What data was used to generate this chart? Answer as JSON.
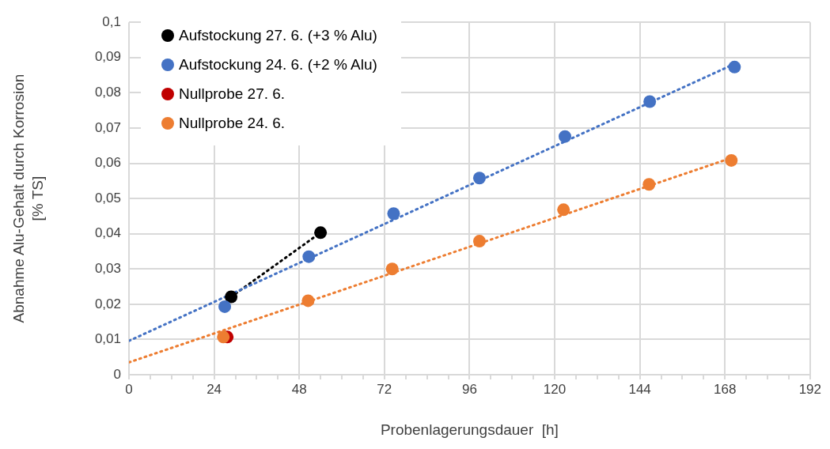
{
  "chart_data": {
    "type": "scatter",
    "xlabel": "Probenlagerungsdauer  [h]",
    "ylabel": "Abnahme Alu-Gehalt durch Korrosion\n[% TS]",
    "xlim": [
      0,
      192
    ],
    "xticks": [
      0,
      {
        "value": 6,
        "label": null
      },
      {
        "value": 12,
        "label": null
      },
      {
        "value": 18,
        "label": null
      },
      24,
      {
        "value": 30,
        "label": null
      },
      {
        "value": 36,
        "label": null
      },
      {
        "value": 42,
        "label": null
      },
      48,
      {
        "value": 54,
        "label": null
      },
      {
        "value": 60,
        "label": null
      },
      {
        "value": 66,
        "label": null
      },
      72,
      {
        "value": 78,
        "label": null
      },
      {
        "value": 84,
        "label": null
      },
      {
        "value": 90,
        "label": null
      },
      96,
      {
        "value": 102,
        "label": null
      },
      {
        "value": 108,
        "label": null
      },
      {
        "value": 114,
        "label": null
      },
      120,
      {
        "value": 126,
        "label": null
      },
      {
        "value": 132,
        "label": null
      },
      {
        "value": 138,
        "label": null
      },
      144,
      {
        "value": 150,
        "label": null
      },
      {
        "value": 156,
        "label": null
      },
      {
        "value": 162,
        "label": null
      },
      168,
      {
        "value": 174,
        "label": null
      },
      {
        "value": 180,
        "label": null
      },
      {
        "value": 186,
        "label": null
      },
      192
    ],
    "ylim": [
      0,
      0.1
    ],
    "yticks": [
      0,
      {
        "value": 0.01,
        "label": "0,01"
      },
      {
        "value": 0.02,
        "label": "0,02"
      },
      {
        "value": 0.03,
        "label": "0,03"
      },
      {
        "value": 0.04,
        "label": "0,04"
      },
      {
        "value": 0.05,
        "label": "0,05"
      },
      {
        "value": 0.06,
        "label": "0,06"
      },
      {
        "value": 0.07,
        "label": "0,07"
      },
      {
        "value": 0.08,
        "label": "0,08"
      },
      {
        "value": 0.09,
        "label": "0,09"
      },
      {
        "value": 0.1,
        "label": "0,1"
      }
    ],
    "grid": true,
    "legend": "top left",
    "marker": "circle",
    "series": [
      {
        "type": "line",
        "color": "#4472c4",
        "line_style": "dotted",
        "marker": "none",
        "x": [
          0,
          170.7
        ],
        "values": [
          0.0096,
          0.0882
        ]
      },
      {
        "type": "line",
        "color": "#ed7d31",
        "line_style": "dotted",
        "marker": "none",
        "x": [
          0,
          169.8
        ],
        "values": [
          0.0035,
          0.0615
        ]
      },
      {
        "type": "line",
        "color": "#000000",
        "line_style": "dotted",
        "marker": "none",
        "x": [
          28.8,
          54
        ],
        "values": [
          0.0221,
          0.0403
        ]
      },
      {
        "name": "Nullprobe 24. 6.",
        "color": "#ed7d31",
        "x": [
          26.6,
          50.5,
          74.2,
          98.8,
          122.5,
          146.6,
          169.8
        ],
        "values": [
          0.0107,
          0.021,
          0.03,
          0.0379,
          0.0468,
          0.054,
          0.0608
        ]
      },
      {
        "name": "Nullprobe 27. 6.",
        "color": "#c00000",
        "x": [
          27.7
        ],
        "values": [
          0.0107
        ]
      },
      {
        "name": "Aufstockung 24. 6. (+2 % Alu)",
        "color": "#4472c4",
        "x": [
          27.0,
          50.7,
          74.6,
          98.8,
          122.9,
          146.8,
          170.7
        ],
        "values": [
          0.0193,
          0.0335,
          0.0457,
          0.0558,
          0.0676,
          0.0775,
          0.0873
        ]
      },
      {
        "name": "Aufstockung 27. 6. (+3 % Alu)",
        "color": "#000000",
        "x": [
          28.8,
          54.0
        ],
        "values": [
          0.0221,
          0.0403
        ]
      }
    ]
  }
}
